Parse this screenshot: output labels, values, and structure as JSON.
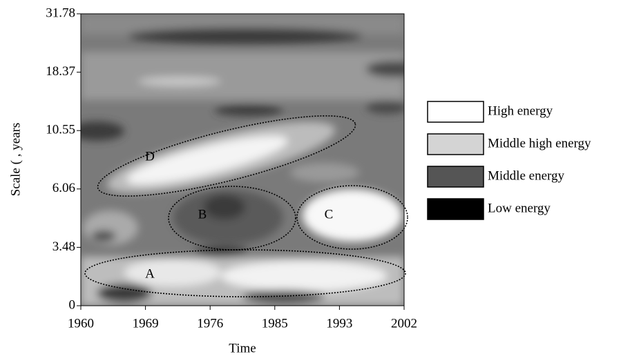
{
  "chart_data": {
    "type": "heatmap",
    "x_label": "Time",
    "y_label": "Scale ( , years",
    "categories": [
      "1960",
      "1969",
      "1976",
      "1985",
      "1993",
      "2002"
    ],
    "y_categories": [
      "0",
      "3.48",
      "6.06",
      "10.55",
      "18.37",
      "31.78"
    ],
    "legend": [
      {
        "name": "High energy",
        "color": "#ffffff"
      },
      {
        "name": "Middle high energy",
        "color": "#d4d4d4"
      },
      {
        "name": "Middle energy",
        "color": "#555555"
      },
      {
        "name": "Low energy",
        "color": "#000000"
      }
    ],
    "annotations": [
      "A",
      "B",
      "C",
      "D"
    ]
  }
}
